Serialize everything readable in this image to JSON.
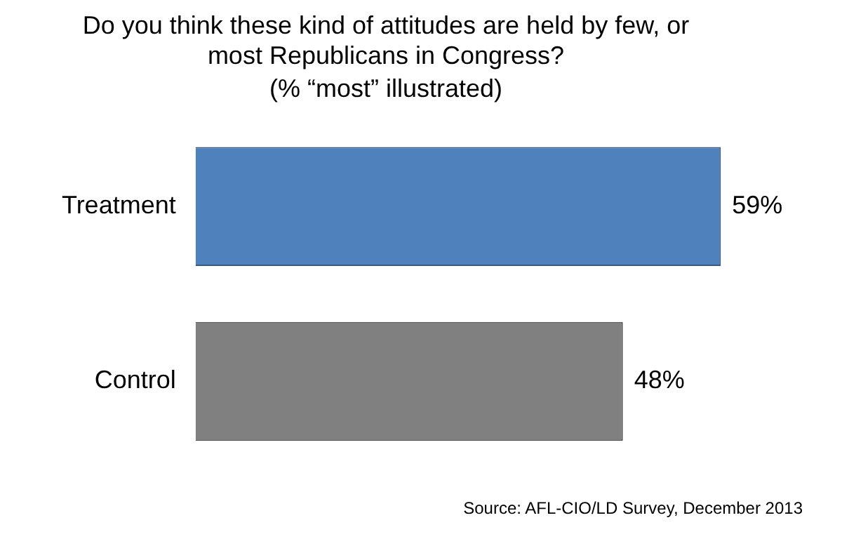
{
  "chart_data": {
    "type": "bar",
    "orientation": "horizontal",
    "title": "Do you think these kind of attitudes are held by few, or most Republicans in Congress?",
    "subtitle": "(% “most” illustrated)",
    "categories": [
      "Treatment",
      "Control"
    ],
    "values": [
      59,
      48
    ],
    "colors": [
      "#4f81bd",
      "#808080"
    ],
    "value_labels": [
      "59%",
      "48%"
    ],
    "annotations": [
      "Source: AFL-CIO/LD Survey, December 2013"
    ],
    "legend": false,
    "grid": false
  }
}
